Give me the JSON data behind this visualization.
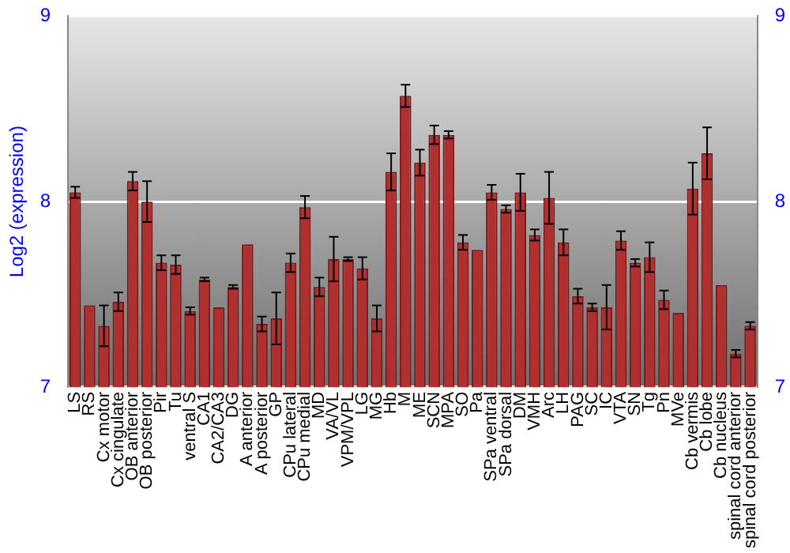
{
  "chart_data": {
    "type": "bar",
    "ylabel": "Log2 (expression)",
    "categories": [
      "LS",
      "RS",
      "Cx motor",
      "Cx cingulate",
      "OB anterior",
      "OB posterior",
      "Pir",
      "Tu",
      "ventral S",
      "CA1",
      "CA2/CA3",
      "DG",
      "A anterior",
      "A posterior",
      "GP",
      "CPu lateral",
      "CPu medial",
      "MD",
      "VA/VL",
      "VPM/VPL",
      "LG",
      "MG",
      "Hb",
      "M",
      "ME",
      "SCN",
      "MPA",
      "SO",
      "Pa",
      "SPa ventral",
      "SPa dorsal",
      "DM",
      "VMH",
      "Arc",
      "LH",
      "PAG",
      "SC",
      "IC",
      "VTA",
      "SN",
      "Tg",
      "Pn",
      "MVe",
      "Cb vermis",
      "Cb lobe",
      "Cb nucleus",
      "spinal cord anterior",
      "spinal cord posterior"
    ],
    "values": [
      8.05,
      7.44,
      7.33,
      7.46,
      8.11,
      8.0,
      7.67,
      7.66,
      7.41,
      7.58,
      7.43,
      7.54,
      7.77,
      7.34,
      7.37,
      7.67,
      7.97,
      7.54,
      7.69,
      7.69,
      7.64,
      7.37,
      8.16,
      8.57,
      8.21,
      8.36,
      8.36,
      7.78,
      7.74,
      8.05,
      7.96,
      8.05,
      7.82,
      8.02,
      7.78,
      7.49,
      7.43,
      7.43,
      7.79,
      7.67,
      7.7,
      7.47,
      7.4,
      8.07,
      8.26,
      7.55,
      7.18,
      7.33
    ],
    "errors": [
      0.03,
      null,
      0.11,
      0.05,
      0.05,
      0.11,
      0.04,
      0.05,
      0.02,
      0.01,
      null,
      0.01,
      null,
      0.04,
      0.14,
      0.05,
      0.06,
      0.05,
      0.12,
      0.01,
      0.06,
      0.07,
      0.1,
      0.06,
      0.07,
      0.05,
      0.02,
      0.04,
      null,
      0.04,
      0.02,
      0.1,
      0.03,
      0.14,
      0.07,
      0.04,
      0.02,
      0.12,
      0.05,
      0.02,
      0.08,
      0.05,
      null,
      0.14,
      0.14,
      null,
      0.02,
      0.02
    ],
    "color": "#b03030",
    "ylim": [
      7,
      9
    ],
    "yticks": [
      7,
      8,
      9
    ],
    "y2lim": [
      7,
      9
    ],
    "y2ticks": [
      7,
      8,
      9
    ],
    "grid": "y"
  }
}
